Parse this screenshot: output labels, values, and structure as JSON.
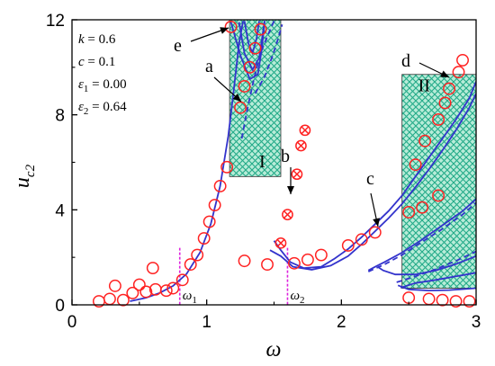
{
  "chart_data": {
    "type": "line",
    "xlabel": "ω",
    "ylabel": "u",
    "ylabel_sub": "c2",
    "xlim": [
      0,
      3
    ],
    "ylim": [
      0,
      12
    ],
    "xticks": [
      0,
      1,
      2,
      3
    ],
    "yticks": [
      0,
      4,
      8,
      12
    ],
    "grid": false,
    "parameters": [
      {
        "name": "k",
        "sub": "",
        "value": "0.6"
      },
      {
        "name": "c",
        "sub": "",
        "value": "0.1"
      },
      {
        "name": "ε",
        "sub": "1",
        "value": "0.00"
      },
      {
        "name": "ε",
        "sub": "2",
        "value": "0.64"
      }
    ],
    "colors": {
      "curve": "#3333cc",
      "marker": "#ff2222",
      "guide": "#dd22dd",
      "region_fill": "#b8ecd8",
      "region_hatch": "#22aa88"
    },
    "regions": [
      {
        "label": "I",
        "x": [
          1.17,
          1.55
        ],
        "y": [
          5.4,
          12.0
        ]
      },
      {
        "label": "II",
        "x": [
          2.45,
          3.0
        ],
        "y": [
          0.7,
          9.7
        ]
      }
    ],
    "guides": [
      {
        "label": "ω",
        "sub": "1",
        "x": 0.8
      },
      {
        "label": "ω",
        "sub": "2",
        "x": 1.6
      }
    ],
    "series": [
      {
        "style": "solid",
        "points": [
          [
            0.43,
            0.15
          ],
          [
            0.55,
            0.3
          ],
          [
            0.65,
            0.5
          ],
          [
            0.75,
            0.8
          ],
          [
            0.85,
            1.3
          ],
          [
            0.95,
            2.2
          ],
          [
            1.03,
            3.4
          ],
          [
            1.1,
            5.0
          ],
          [
            1.16,
            7.1
          ],
          [
            1.2,
            9.0
          ],
          [
            1.24,
            11.0
          ],
          [
            1.27,
            11.95
          ]
        ]
      },
      {
        "style": "solid",
        "points": [
          [
            1.18,
            11.9
          ],
          [
            1.25,
            10.5
          ],
          [
            1.32,
            9.5
          ],
          [
            1.38,
            9.7
          ],
          [
            1.41,
            10.8
          ],
          [
            1.43,
            11.95
          ]
        ]
      },
      {
        "style": "solid",
        "points": [
          [
            1.43,
            11.95
          ],
          [
            1.39,
            10.4
          ],
          [
            1.34,
            9.9
          ],
          [
            1.28,
            10.6
          ],
          [
            1.24,
            11.9
          ]
        ]
      },
      {
        "style": "solid",
        "points": [
          [
            1.28,
            11.95
          ],
          [
            1.31,
            11.0
          ],
          [
            1.34,
            10.6
          ],
          [
            1.37,
            11.2
          ],
          [
            1.39,
            11.95
          ]
        ]
      },
      {
        "style": "dashed",
        "points": [
          [
            1.26,
            7.0
          ],
          [
            1.3,
            8.2
          ],
          [
            1.35,
            9.5
          ],
          [
            1.4,
            10.6
          ],
          [
            1.45,
            11.3
          ],
          [
            1.5,
            11.95
          ]
        ]
      },
      {
        "style": "dashed",
        "points": [
          [
            1.36,
            8.9
          ],
          [
            1.43,
            9.6
          ],
          [
            1.49,
            10.5
          ],
          [
            1.53,
            11.2
          ],
          [
            1.56,
            11.8
          ]
        ]
      },
      {
        "style": "solid",
        "points": [
          [
            1.5,
            2.7
          ],
          [
            1.55,
            2.3
          ],
          [
            1.62,
            1.8
          ],
          [
            1.72,
            1.55
          ],
          [
            1.85,
            1.6
          ],
          [
            1.95,
            1.95
          ],
          [
            2.05,
            2.35
          ],
          [
            2.15,
            2.85
          ],
          [
            2.25,
            3.4
          ],
          [
            2.35,
            3.95
          ],
          [
            2.45,
            4.6
          ],
          [
            2.55,
            5.4
          ],
          [
            2.65,
            6.2
          ],
          [
            2.75,
            7.0
          ],
          [
            2.85,
            7.8
          ],
          [
            2.95,
            8.7
          ],
          [
            3.0,
            9.4
          ]
        ]
      },
      {
        "style": "solid",
        "points": [
          [
            1.47,
            2.3
          ],
          [
            1.55,
            2.05
          ],
          [
            1.64,
            1.6
          ],
          [
            1.78,
            1.48
          ],
          [
            1.92,
            1.65
          ],
          [
            2.05,
            2.05
          ],
          [
            2.15,
            2.55
          ],
          [
            2.25,
            3.1
          ],
          [
            2.35,
            3.65
          ],
          [
            2.45,
            4.25
          ],
          [
            2.55,
            4.95
          ],
          [
            2.65,
            5.7
          ],
          [
            2.75,
            6.5
          ],
          [
            2.85,
            7.35
          ],
          [
            2.95,
            8.3
          ],
          [
            3.0,
            8.9
          ]
        ]
      },
      {
        "style": "dashed",
        "points": [
          [
            2.2,
            1.4
          ],
          [
            2.32,
            1.7
          ],
          [
            2.45,
            2.1
          ],
          [
            2.6,
            2.65
          ],
          [
            2.75,
            3.2
          ],
          [
            2.9,
            3.8
          ],
          [
            3.0,
            4.3
          ]
        ]
      },
      {
        "style": "solid",
        "points": [
          [
            2.2,
            1.45
          ],
          [
            2.25,
            1.6
          ],
          [
            2.32,
            1.8
          ],
          [
            2.45,
            2.2
          ],
          [
            2.6,
            2.75
          ],
          [
            2.75,
            3.35
          ],
          [
            2.9,
            3.95
          ],
          [
            3.0,
            4.45
          ]
        ]
      },
      {
        "style": "solid",
        "points": [
          [
            2.27,
            1.6
          ],
          [
            2.31,
            1.45
          ],
          [
            2.4,
            1.28
          ],
          [
            2.55,
            1.28
          ],
          [
            2.7,
            1.45
          ],
          [
            2.85,
            1.72
          ],
          [
            3.0,
            2.05
          ]
        ]
      },
      {
        "style": "dashed",
        "points": [
          [
            2.41,
            0.95
          ],
          [
            2.55,
            1.2
          ],
          [
            2.7,
            1.5
          ],
          [
            2.85,
            1.85
          ],
          [
            3.0,
            2.25
          ]
        ]
      },
      {
        "style": "solid",
        "points": [
          [
            2.44,
            0.72
          ],
          [
            2.55,
            0.92
          ],
          [
            2.7,
            1.05
          ],
          [
            2.85,
            1.2
          ],
          [
            3.0,
            1.35
          ]
        ]
      },
      {
        "style": "solid",
        "points": [
          [
            2.42,
            0.82
          ],
          [
            2.5,
            0.65
          ],
          [
            2.65,
            0.6
          ],
          [
            2.8,
            0.62
          ],
          [
            3.0,
            0.7
          ]
        ]
      }
    ],
    "markers_open": [
      [
        0.2,
        0.15
      ],
      [
        0.28,
        0.25
      ],
      [
        0.32,
        0.8
      ],
      [
        0.38,
        0.2
      ],
      [
        0.45,
        0.5
      ],
      [
        0.5,
        0.85
      ],
      [
        0.55,
        0.55
      ],
      [
        0.6,
        1.55
      ],
      [
        0.62,
        0.65
      ],
      [
        0.7,
        0.6
      ],
      [
        0.75,
        0.7
      ],
      [
        0.82,
        1.05
      ],
      [
        0.88,
        1.7
      ],
      [
        0.93,
        2.1
      ],
      [
        0.98,
        2.8
      ],
      [
        1.02,
        3.5
      ],
      [
        1.06,
        4.2
      ],
      [
        1.1,
        5.0
      ],
      [
        1.15,
        5.8
      ],
      [
        1.18,
        11.7
      ],
      [
        1.25,
        8.3
      ],
      [
        1.28,
        9.2
      ],
      [
        1.32,
        10.0
      ],
      [
        1.36,
        10.8
      ],
      [
        1.4,
        11.6
      ],
      [
        1.28,
        1.85
      ],
      [
        1.45,
        1.7
      ],
      [
        1.65,
        1.75
      ],
      [
        1.75,
        1.9
      ],
      [
        1.85,
        2.1
      ],
      [
        2.05,
        2.5
      ],
      [
        2.15,
        2.75
      ],
      [
        2.25,
        3.05
      ],
      [
        2.5,
        0.3
      ],
      [
        2.5,
        3.9
      ],
      [
        2.55,
        5.9
      ],
      [
        2.6,
        4.1
      ],
      [
        2.62,
        6.9
      ],
      [
        2.65,
        0.25
      ],
      [
        2.72,
        7.8
      ],
      [
        2.72,
        4.6
      ],
      [
        2.75,
        0.2
      ],
      [
        2.77,
        8.5
      ],
      [
        2.8,
        9.1
      ],
      [
        2.85,
        0.15
      ],
      [
        2.87,
        9.8
      ],
      [
        2.9,
        10.3
      ],
      [
        2.95,
        0.15
      ]
    ],
    "markers_crossed": [
      [
        1.55,
        2.6
      ],
      [
        1.6,
        3.8
      ],
      [
        1.67,
        5.5
      ],
      [
        1.7,
        6.7
      ],
      [
        1.73,
        7.35
      ]
    ],
    "annotations": [
      {
        "text": "e",
        "x": 1.2,
        "tip": [
          1.2,
          12.0
        ]
      },
      {
        "text": "a",
        "x": 1.3,
        "tip": [
          1.3,
          8.3
        ]
      },
      {
        "text": "b",
        "x": 1.62,
        "tip": [
          1.62,
          4.4
        ]
      },
      {
        "text": "c",
        "x": 2.25,
        "tip": [
          2.25,
          3.0
        ]
      },
      {
        "text": "d",
        "x": 2.8,
        "tip": [
          2.8,
          9.9
        ]
      }
    ]
  }
}
